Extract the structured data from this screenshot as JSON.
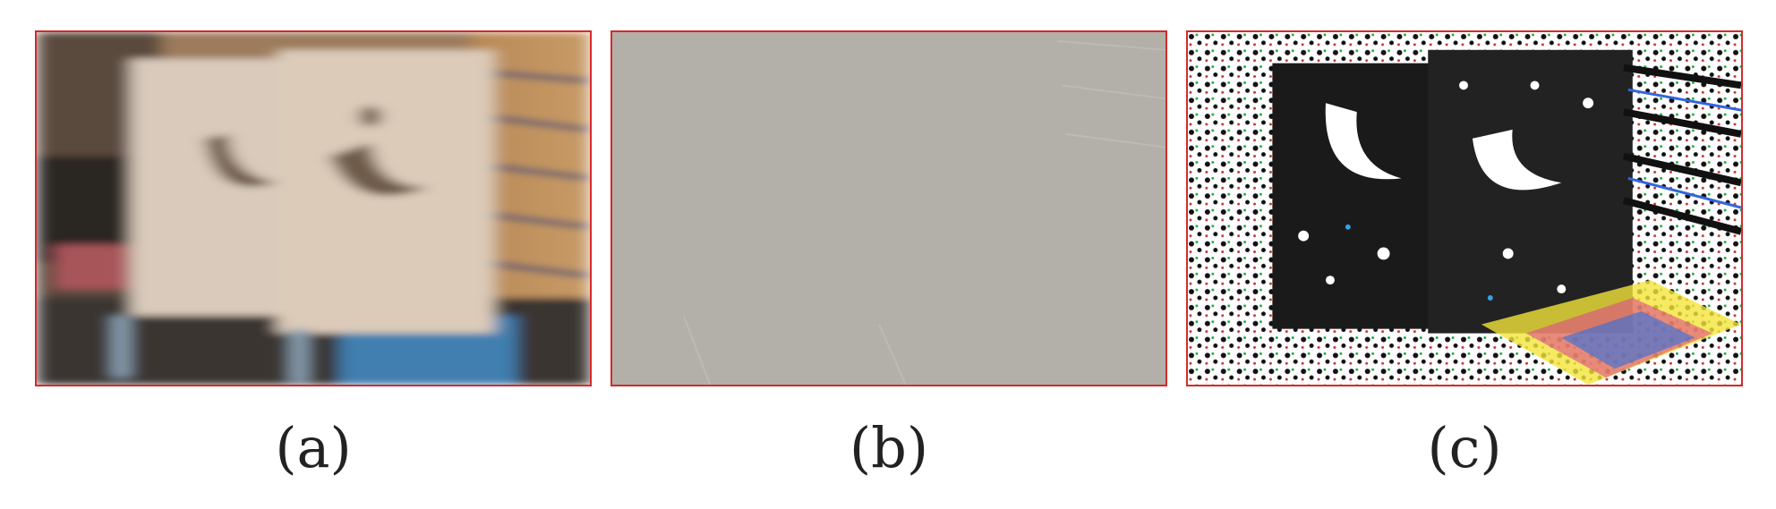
{
  "figure": {
    "panels": [
      {
        "id": "a",
        "caption": "(a)",
        "content": "blurred-photo"
      },
      {
        "id": "b",
        "content": "gray-residual"
      },
      {
        "id": "c",
        "content": "edge-map"
      }
    ],
    "captions": {
      "a": "(a)",
      "b": "(b)",
      "c": "(c)"
    },
    "colors": {
      "panel_border": "#d42a2a",
      "caption_text": "#222222",
      "residual_gray": "#b3afa9"
    }
  }
}
